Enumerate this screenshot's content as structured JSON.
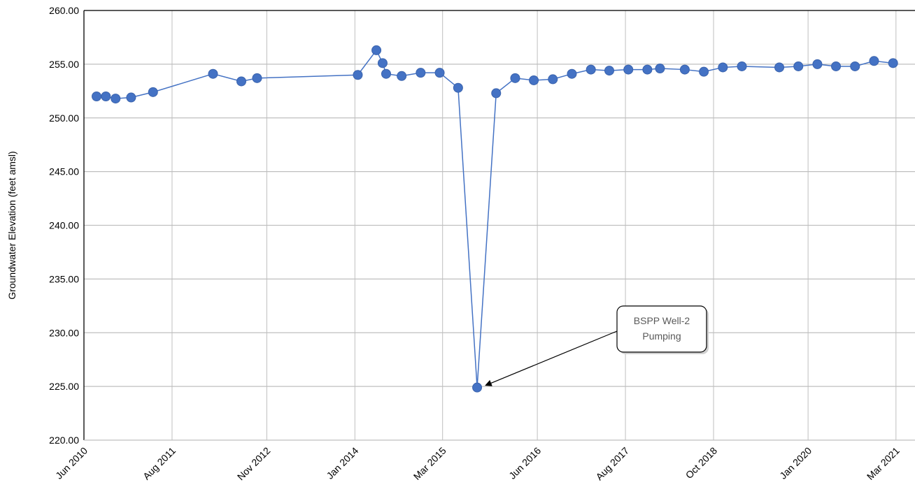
{
  "colors": {
    "series": "#4472C4",
    "grid": "#BFBFBF",
    "axis": "#000000",
    "annotation_text": "#595959"
  },
  "chart_data": {
    "type": "line",
    "title": "",
    "xlabel": "",
    "ylabel": "Groundwater Elevation (feet amsl)",
    "ylim": [
      220,
      260
    ],
    "yticks": [
      "220.00",
      "225.00",
      "230.00",
      "235.00",
      "240.00",
      "245.00",
      "250.00",
      "255.00",
      "260.00"
    ],
    "ytick_values": [
      220,
      225,
      230,
      235,
      240,
      245,
      250,
      255,
      260
    ],
    "xlim": [
      "2010-06-01",
      "2021-06-01"
    ],
    "xticks": [
      "Jun 2010",
      "Aug 2011",
      "Nov 2012",
      "Jan 2014",
      "Mar 2015",
      "Jun 2016",
      "Aug 2017",
      "Oct 2018",
      "Jan 2020",
      "Mar 2021"
    ],
    "xtick_dates": [
      "2010-06-01",
      "2011-08-01",
      "2012-11-01",
      "2014-01-01",
      "2015-03-01",
      "2016-06-01",
      "2017-08-01",
      "2018-10-01",
      "2020-01-01",
      "2021-03-01"
    ],
    "grid": true,
    "legend": "none",
    "series": [
      {
        "marker": "circle",
        "points": [
          {
            "x": "2010-08-01",
            "y": 252.0
          },
          {
            "x": "2010-09-15",
            "y": 252.0
          },
          {
            "x": "2010-11-01",
            "y": 251.8
          },
          {
            "x": "2011-01-15",
            "y": 251.9
          },
          {
            "x": "2011-05-01",
            "y": 252.4
          },
          {
            "x": "2012-02-15",
            "y": 254.1
          },
          {
            "x": "2012-07-01",
            "y": 253.4
          },
          {
            "x": "2012-09-15",
            "y": 253.7
          },
          {
            "x": "2014-01-15",
            "y": 254.0
          },
          {
            "x": "2014-04-15",
            "y": 256.3
          },
          {
            "x": "2014-05-15",
            "y": 255.1
          },
          {
            "x": "2014-06-01",
            "y": 254.1
          },
          {
            "x": "2014-08-15",
            "y": 253.9
          },
          {
            "x": "2014-11-15",
            "y": 254.2
          },
          {
            "x": "2015-02-15",
            "y": 254.2
          },
          {
            "x": "2015-05-15",
            "y": 252.8
          },
          {
            "x": "2015-08-15",
            "y": 224.9
          },
          {
            "x": "2015-11-15",
            "y": 252.3
          },
          {
            "x": "2016-02-15",
            "y": 253.7
          },
          {
            "x": "2016-05-15",
            "y": 253.5
          },
          {
            "x": "2016-08-15",
            "y": 253.6
          },
          {
            "x": "2016-11-15",
            "y": 254.1
          },
          {
            "x": "2017-02-15",
            "y": 254.5
          },
          {
            "x": "2017-05-15",
            "y": 254.4
          },
          {
            "x": "2017-08-15",
            "y": 254.5
          },
          {
            "x": "2017-11-15",
            "y": 254.5
          },
          {
            "x": "2018-01-15",
            "y": 254.6
          },
          {
            "x": "2018-05-15",
            "y": 254.5
          },
          {
            "x": "2018-08-15",
            "y": 254.3
          },
          {
            "x": "2018-11-15",
            "y": 254.7
          },
          {
            "x": "2019-02-15",
            "y": 254.8
          },
          {
            "x": "2019-08-15",
            "y": 254.7
          },
          {
            "x": "2019-11-15",
            "y": 254.8
          },
          {
            "x": "2020-02-15",
            "y": 255.0
          },
          {
            "x": "2020-05-15",
            "y": 254.8
          },
          {
            "x": "2020-08-15",
            "y": 254.8
          },
          {
            "x": "2020-11-15",
            "y": 255.3
          },
          {
            "x": "2021-02-15",
            "y": 255.1
          }
        ]
      }
    ],
    "annotations": [
      {
        "lines": [
          "BSPP Well-2",
          "Pumping"
        ],
        "points_to": {
          "x": "2015-08-15",
          "y": 224.9
        }
      }
    ]
  }
}
